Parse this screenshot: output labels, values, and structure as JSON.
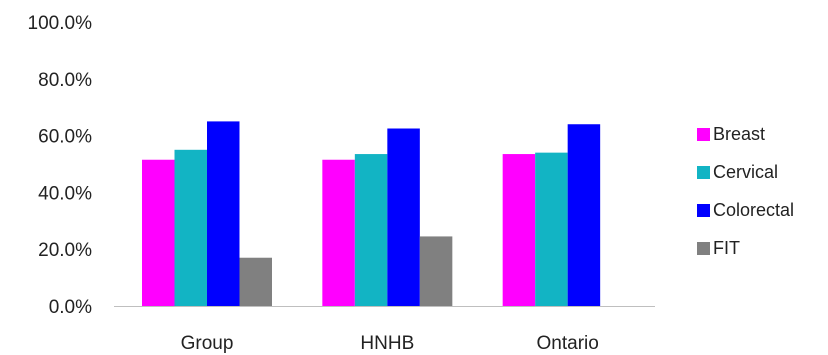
{
  "chart_data": {
    "type": "bar",
    "categories": [
      "Group",
      "HNHB",
      "Ontario"
    ],
    "series": [
      {
        "name": "Breast",
        "color": "#FF00FF",
        "values": [
          51.5,
          51.5,
          53.5
        ]
      },
      {
        "name": "Cervical",
        "color": "#12B4C4",
        "values": [
          55.0,
          53.5,
          54.0
        ]
      },
      {
        "name": "Colorectal",
        "color": "#0000FF",
        "values": [
          65.0,
          62.5,
          64.0
        ]
      },
      {
        "name": "FIT",
        "color": "#808080",
        "values": [
          17.0,
          24.5,
          null
        ]
      }
    ],
    "yticks": [
      "0.0%",
      "20.0%",
      "40.0%",
      "60.0%",
      "80.0%",
      "100.0%"
    ],
    "ylim": [
      0,
      100
    ],
    "title": "",
    "xlabel": "",
    "ylabel": "",
    "grid": false,
    "legend_position": "right"
  }
}
